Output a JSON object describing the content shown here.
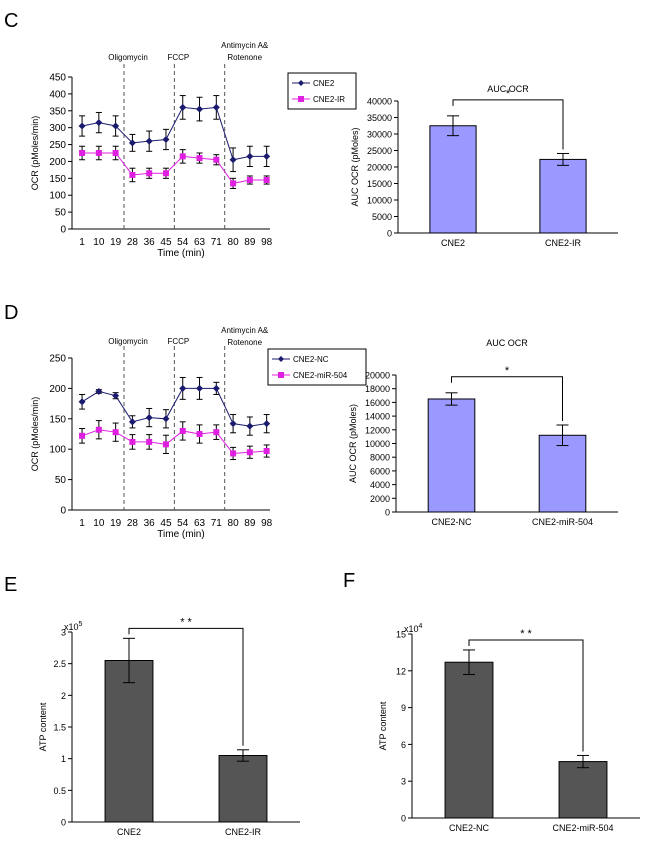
{
  "panels": {
    "C": "C",
    "D": "D",
    "E": "E",
    "F": "F"
  },
  "chart_data": [
    {
      "panel": "C",
      "type": "line",
      "title": "",
      "xlabel": "Time (min)",
      "ylabel": "OCR (pMoles/min)",
      "ylim": [
        0,
        450
      ],
      "yticks": [
        0,
        50,
        100,
        150,
        200,
        250,
        300,
        350,
        400,
        450
      ],
      "x": [
        1,
        10,
        19,
        28,
        36,
        45,
        54,
        63,
        71,
        80,
        89,
        98
      ],
      "xtick_labels": [
        "1",
        "10",
        "19",
        "28",
        "36",
        "45",
        "54",
        "63",
        "71",
        "80",
        "89",
        "98"
      ],
      "legend_position": "top-right",
      "markers": [
        {
          "label": "Oligomycin",
          "after_index": 2
        },
        {
          "label": "FCCP",
          "after_index": 5
        },
        {
          "label": "Antimycin A&",
          "label2": "Rotenone",
          "after_index": 8
        }
      ],
      "series": [
        {
          "name": "CNE2",
          "color": "#1a1a6e",
          "marker": "diamond",
          "values": [
            305,
            315,
            305,
            255,
            260,
            265,
            360,
            355,
            360,
            205,
            215,
            215
          ],
          "errors": [
            30,
            30,
            30,
            25,
            30,
            30,
            35,
            35,
            35,
            35,
            30,
            30
          ]
        },
        {
          "name": "CNE2-IR",
          "color": "#e020e0",
          "marker": "square",
          "values": [
            225,
            225,
            225,
            160,
            165,
            165,
            215,
            210,
            205,
            135,
            145,
            145
          ],
          "errors": [
            20,
            20,
            20,
            20,
            15,
            15,
            20,
            15,
            15,
            15,
            12,
            12
          ]
        }
      ]
    },
    {
      "panel": "C",
      "type": "bar",
      "title": "AUC OCR",
      "xlabel": "",
      "ylabel": "AUC OCR (pMoles)",
      "ylim": [
        0,
        40000
      ],
      "yticks": [
        0,
        5000,
        10000,
        15000,
        20000,
        25000,
        30000,
        35000,
        40000
      ],
      "categories": [
        "CNE2",
        "CNE2-IR"
      ],
      "values": [
        32500,
        22300
      ],
      "errors": [
        3000,
        1800
      ],
      "color": "#9999ff",
      "significance": "*"
    },
    {
      "panel": "D",
      "type": "line",
      "title": "",
      "xlabel": "Time (min)",
      "ylabel": "OCR (pMoles/min)",
      "ylim": [
        0,
        250
      ],
      "yticks": [
        0,
        50,
        100,
        150,
        200,
        250
      ],
      "x": [
        1,
        10,
        19,
        28,
        36,
        45,
        54,
        63,
        71,
        80,
        89,
        98
      ],
      "xtick_labels": [
        "1",
        "10",
        "19",
        "28",
        "36",
        "45",
        "54",
        "63",
        "71",
        "80",
        "89",
        "98"
      ],
      "legend_position": "top-right",
      "markers": [
        {
          "label": "Oligomycin",
          "after_index": 2
        },
        {
          "label": "FCCP",
          "after_index": 5
        },
        {
          "label": "Antimycin A&",
          "label2": "Rotenone",
          "after_index": 8
        }
      ],
      "series": [
        {
          "name": "CNE2-NC",
          "color": "#1a1a6e",
          "marker": "diamond",
          "values": [
            178,
            195,
            188,
            145,
            152,
            150,
            200,
            200,
            200,
            142,
            138,
            142
          ],
          "errors": [
            12,
            3,
            5,
            10,
            15,
            15,
            18,
            18,
            10,
            15,
            15,
            15
          ]
        },
        {
          "name": "CNE2-miR-504",
          "color": "#e020e0",
          "marker": "square",
          "values": [
            122,
            132,
            128,
            112,
            112,
            108,
            130,
            125,
            128,
            93,
            95,
            97
          ],
          "errors": [
            12,
            15,
            15,
            12,
            12,
            15,
            15,
            15,
            12,
            10,
            10,
            10
          ]
        }
      ]
    },
    {
      "panel": "D",
      "type": "bar",
      "title": "AUC OCR",
      "xlabel": "",
      "ylabel": "AUC OCR (pMoles)",
      "ylim": [
        0,
        20000
      ],
      "yticks": [
        0,
        2000,
        4000,
        6000,
        8000,
        10000,
        12000,
        14000,
        16000,
        18000,
        20000
      ],
      "categories": [
        "CNE2-NC",
        "CNE2-miR-504"
      ],
      "values": [
        16500,
        11200
      ],
      "errors": [
        900,
        1500
      ],
      "color": "#9999ff",
      "significance": "*"
    },
    {
      "panel": "E",
      "type": "bar",
      "title": "",
      "xlabel": "",
      "ylabel": "ATP content",
      "scale_label": "x10",
      "scale_exp": "5",
      "ylim": [
        0,
        3
      ],
      "yticks": [
        0,
        0.5,
        1,
        1.5,
        2,
        2.5,
        3
      ],
      "categories": [
        "CNE2",
        "CNE2-IR"
      ],
      "values": [
        2.55,
        1.05
      ],
      "errors": [
        0.35,
        0.09
      ],
      "color": "#555555",
      "significance": "* *"
    },
    {
      "panel": "F",
      "type": "bar",
      "title": "",
      "xlabel": "",
      "ylabel": "ATP content",
      "scale_label": "x10",
      "scale_exp": "4",
      "ylim": [
        0,
        15
      ],
      "yticks": [
        0,
        3,
        6,
        9,
        12,
        15
      ],
      "categories": [
        "CNE2-NC",
        "CNE2-miR-504"
      ],
      "values": [
        12.7,
        4.6
      ],
      "errors": [
        1.0,
        0.5
      ],
      "color": "#555555",
      "significance": "* *"
    }
  ]
}
